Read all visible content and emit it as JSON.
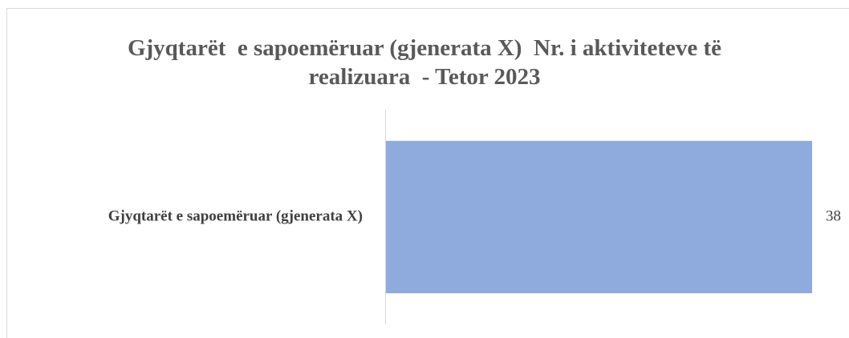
{
  "chart_data": {
    "type": "bar",
    "orientation": "horizontal",
    "title": "Gjyqtarët  e sapoemëruar (gjenerata X)  Nr. i aktiviteteve të realizuara  - Tetor 2023",
    "categories": [
      "Gjyqtarët e sapoemëruar (gjenerata X)"
    ],
    "values": [
      38
    ],
    "color": "#8faadc",
    "xlim": [
      0,
      40
    ]
  }
}
